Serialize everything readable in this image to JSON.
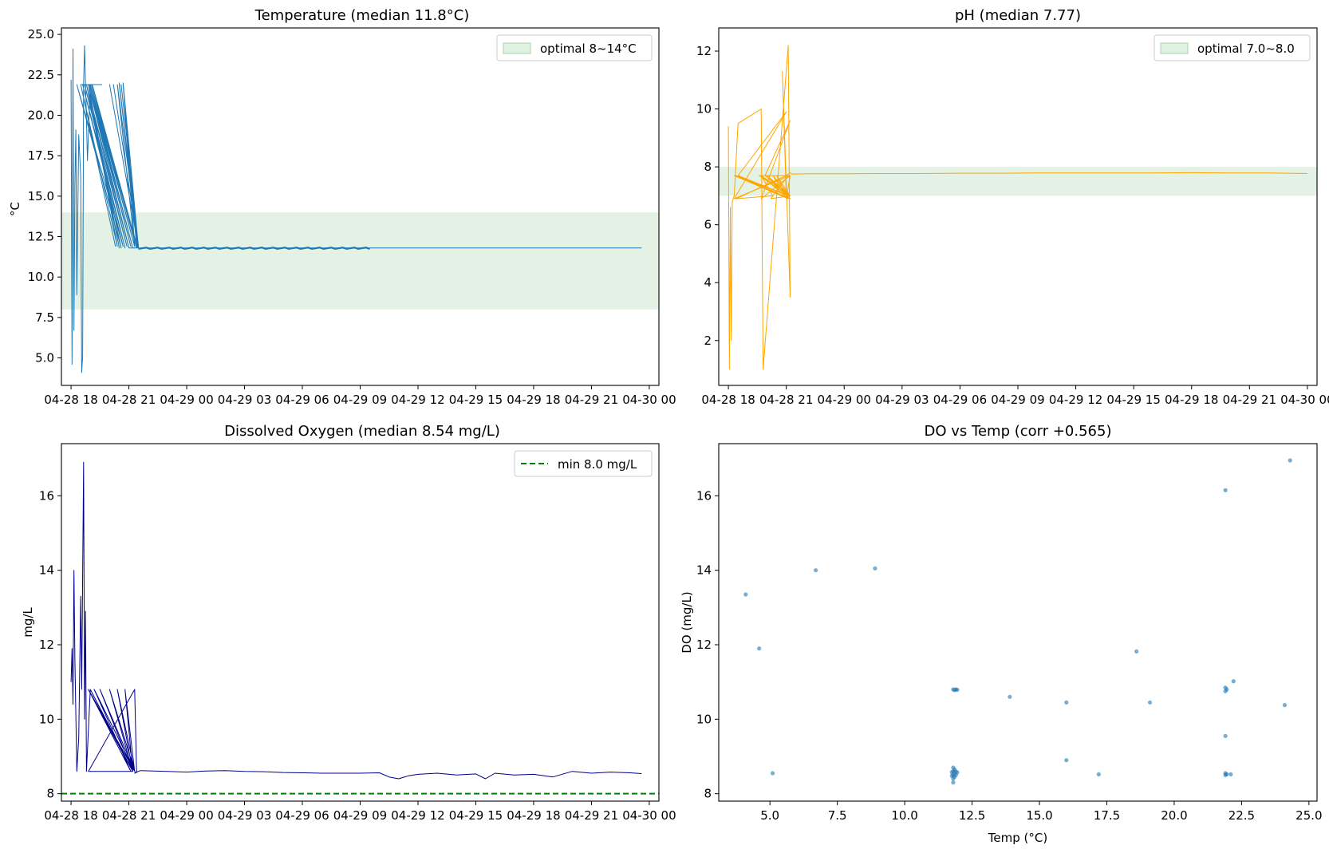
{
  "chart_data": [
    {
      "type": "line",
      "title": "Temperature (median 11.8°C)",
      "xlabel": "",
      "ylabel": "°C",
      "ylim": [
        3.3,
        25.4
      ],
      "yticks": [
        5.0,
        7.5,
        10.0,
        12.5,
        15.0,
        17.5,
        20.0,
        22.5,
        25.0
      ],
      "ytick_labels": [
        "5.0",
        "7.5",
        "10.0",
        "12.5",
        "15.0",
        "17.5",
        "20.0",
        "22.5",
        "25.0"
      ],
      "xlim": [
        -0.5,
        30.5
      ],
      "xticks": [
        0,
        3,
        6,
        9,
        12,
        15,
        18,
        21,
        24,
        27,
        30
      ],
      "xtick_labels": [
        "04-28 18",
        "04-28 21",
        "04-29 00",
        "04-29 03",
        "04-29 06",
        "04-29 09",
        "04-29 12",
        "04-29 15",
        "04-29 18",
        "04-29 21",
        "04-30 00"
      ],
      "band": {
        "y0": 8,
        "y1": 14,
        "color": "#c8e6c9"
      },
      "legend": {
        "label": "optimal 8~14°C",
        "loc": "upper right"
      },
      "series_color": "#1f77b4",
      "x": [
        0.0,
        0.05,
        0.1,
        0.15,
        0.2,
        0.25,
        0.3,
        0.4,
        0.5,
        0.55,
        0.6,
        0.65,
        0.7,
        0.75,
        0.8,
        0.85,
        1.0,
        1.6,
        0.5,
        2.3,
        0.5,
        2.4,
        0.9,
        2.5,
        0.8,
        2.6,
        0.3,
        2.7,
        0.6,
        2.8,
        0.7,
        2.9,
        0.8,
        3.0,
        0.9,
        3.1,
        0.95,
        3.2,
        1.0,
        3.3,
        1.05,
        3.4,
        1.1,
        3.45,
        2.5,
        3.5,
        2.0,
        3.5,
        2.2,
        3.5,
        2.5,
        3.5,
        2.6,
        3.5,
        2.4,
        3.3,
        2.7,
        3.5,
        2.7,
        3.4,
        3.5,
        3.0,
        4.0,
        5.0,
        6.0,
        7.0,
        8.0,
        9.0,
        10.0,
        11.0,
        12.0,
        13.0,
        14.0,
        15.0,
        16.0,
        17.0,
        18.0,
        19.0,
        20.0,
        21.0,
        22.0,
        23.0,
        24.0,
        25.0,
        26.0,
        27.0,
        28.0,
        29.0,
        29.6
      ],
      "y": [
        22.2,
        4.6,
        24.1,
        6.7,
        15.8,
        19.1,
        8.9,
        18.8,
        16.2,
        4.1,
        5.1,
        21.9,
        24.3,
        21.9,
        19.8,
        17.2,
        21.9,
        21.9,
        21.9,
        11.9,
        21.9,
        11.9,
        21.9,
        11.8,
        21.9,
        11.8,
        21.9,
        11.9,
        21.9,
        11.8,
        21.9,
        11.9,
        21.9,
        11.8,
        21.9,
        11.9,
        21.9,
        11.8,
        21.9,
        11.9,
        21.9,
        11.8,
        21.9,
        11.8,
        22.0,
        11.8,
        21.9,
        11.8,
        21.9,
        11.8,
        21.9,
        11.9,
        21.9,
        11.8,
        21.9,
        11.9,
        22.0,
        11.8,
        21.9,
        11.9,
        11.8,
        11.8,
        11.8,
        11.8,
        11.8,
        11.8,
        11.8,
        11.8,
        11.8,
        11.8,
        11.8,
        11.8,
        11.8,
        11.8,
        11.8,
        11.8,
        11.8,
        11.8,
        11.8,
        11.8,
        11.8,
        11.8,
        11.8,
        11.8,
        11.8,
        11.8,
        11.8,
        11.8,
        11.8
      ]
    },
    {
      "type": "line",
      "title": "pH (median 7.77)",
      "xlabel": "",
      "ylabel": "",
      "ylim": [
        0.45,
        12.8
      ],
      "yticks": [
        2,
        4,
        6,
        8,
        10,
        12
      ],
      "ytick_labels": [
        "2",
        "4",
        "6",
        "8",
        "10",
        "12"
      ],
      "xlim": [
        -0.5,
        30.5
      ],
      "xticks": [
        0,
        3,
        6,
        9,
        12,
        15,
        18,
        21,
        24,
        27,
        30
      ],
      "xtick_labels": [
        "04-28 18",
        "04-28 21",
        "04-29 00",
        "04-29 03",
        "04-29 06",
        "04-29 09",
        "04-29 12",
        "04-29 15",
        "04-29 18",
        "04-29 21",
        "04-30 00"
      ],
      "band": {
        "y0": 7.0,
        "y1": 8.0,
        "color": "#c8e6c9"
      },
      "legend": {
        "label": "optimal 7.0~8.0",
        "loc": "upper right"
      },
      "series_color": "#ffa500",
      "x": [
        0.0,
        0.05,
        0.1,
        0.15,
        0.2,
        0.3,
        0.5,
        1.7,
        1.8,
        3.1,
        3.2,
        2.8,
        3.0,
        3.2,
        1.6,
        3.1,
        0.5,
        3.0,
        0.3,
        3.2,
        1.7,
        3.2,
        1.9,
        3.1,
        0.4,
        3.2,
        2.0,
        3.2,
        2.3,
        3.1,
        2.5,
        3.2,
        0.3,
        3.1,
        1.7,
        3.2,
        2.2,
        3.1,
        1.7,
        2.3,
        0.4,
        3.0,
        3.2,
        3.3,
        4.0,
        6.0,
        8.0,
        10.0,
        12.0,
        14.0,
        16.0,
        18.0,
        20.0,
        22.0,
        24.0,
        26.0,
        28.0,
        29.0,
        30.0
      ],
      "y": [
        9.4,
        1.0,
        6.6,
        2.0,
        6.8,
        7.0,
        9.5,
        10.0,
        1.0,
        12.2,
        3.5,
        11.3,
        6.9,
        7.7,
        7.7,
        7.0,
        7.7,
        9.9,
        6.9,
        7.7,
        6.9,
        9.6,
        7.7,
        7.0,
        7.7,
        6.9,
        7.7,
        7.0,
        7.7,
        6.9,
        7.7,
        7.0,
        7.7,
        6.9,
        7.7,
        7.0,
        6.9,
        7.7,
        7.7,
        7.0,
        6.9,
        7.7,
        7.8,
        7.75,
        7.76,
        7.76,
        7.77,
        7.77,
        7.78,
        7.78,
        7.79,
        7.79,
        7.79,
        7.79,
        7.8,
        7.79,
        7.79,
        7.78,
        7.77
      ]
    },
    {
      "type": "line",
      "title": "Dissolved Oxygen (median 8.54 mg/L)",
      "xlabel": "",
      "ylabel": "mg/L",
      "ylim": [
        7.8,
        17.4
      ],
      "yticks": [
        8,
        10,
        12,
        14,
        16
      ],
      "ytick_labels": [
        "8",
        "10",
        "12",
        "14",
        "16"
      ],
      "xlim": [
        -0.5,
        30.5
      ],
      "xticks": [
        0,
        3,
        6,
        9,
        12,
        15,
        18,
        21,
        24,
        27,
        30
      ],
      "xtick_labels": [
        "04-28 18",
        "04-28 21",
        "04-29 00",
        "04-29 03",
        "04-29 06",
        "04-29 09",
        "04-29 12",
        "04-29 15",
        "04-29 18",
        "04-29 21",
        "04-30 00"
      ],
      "hline": {
        "y": 8.0,
        "color": "#008000"
      },
      "legend": {
        "label": "min 8.0 mg/L",
        "loc": "upper right"
      },
      "series_color": "#00008b",
      "x": [
        0.0,
        0.05,
        0.1,
        0.15,
        0.2,
        0.3,
        0.4,
        0.5,
        0.55,
        0.65,
        0.7,
        0.75,
        0.8,
        1.0,
        3.2,
        0.9,
        3.1,
        1.2,
        3.3,
        1.5,
        3.2,
        2.0,
        3.3,
        0.9,
        3.2,
        2.4,
        3.3,
        2.8,
        3.2,
        0.9,
        3.3,
        3.4,
        3.3,
        3.5,
        3.6,
        5.0,
        6.0,
        7.0,
        8.0,
        9.0,
        10.0,
        11.0,
        12.0,
        13.0,
        14.0,
        15.0,
        16.0,
        16.5,
        17.0,
        17.5,
        18.0,
        19.0,
        20.0,
        21.0,
        21.5,
        22.0,
        23.0,
        24.0,
        25.0,
        26.0,
        27.0,
        28.0,
        29.0,
        29.6
      ],
      "y": [
        11.0,
        11.9,
        10.4,
        14.0,
        11.6,
        8.6,
        9.5,
        13.3,
        10.8,
        16.9,
        10.0,
        12.9,
        8.6,
        10.8,
        8.6,
        10.8,
        8.6,
        10.8,
        8.6,
        10.8,
        8.6,
        10.8,
        8.6,
        10.8,
        8.6,
        10.8,
        8.6,
        10.8,
        8.6,
        8.6,
        10.8,
        8.6,
        8.55,
        8.6,
        8.62,
        8.6,
        8.58,
        8.61,
        8.62,
        8.6,
        8.59,
        8.57,
        8.56,
        8.55,
        8.55,
        8.55,
        8.56,
        8.45,
        8.4,
        8.48,
        8.52,
        8.55,
        8.5,
        8.53,
        8.4,
        8.55,
        8.5,
        8.52,
        8.45,
        8.6,
        8.55,
        8.58,
        8.56,
        8.54
      ],
      "series_band_note": ""
    },
    {
      "type": "scatter",
      "title": "DO vs Temp (corr +0.565)",
      "xlabel": "Temp (°C)",
      "ylabel": "DO (mg/L)",
      "xlim": [
        3.1,
        25.3
      ],
      "ylim": [
        7.8,
        17.4
      ],
      "xticks": [
        5.0,
        7.5,
        10.0,
        12.5,
        15.0,
        17.5,
        20.0,
        22.5,
        25.0
      ],
      "xtick_labels": [
        "5.0",
        "7.5",
        "10.0",
        "12.5",
        "15.0",
        "17.5",
        "20.0",
        "22.5",
        "25.0"
      ],
      "yticks": [
        8,
        10,
        12,
        14,
        16
      ],
      "ytick_labels": [
        "8",
        "10",
        "12",
        "14",
        "16"
      ],
      "series_color": "#1f77b4",
      "points": [
        [
          4.1,
          13.35
        ],
        [
          4.6,
          11.9
        ],
        [
          5.1,
          8.55
        ],
        [
          6.7,
          14.0
        ],
        [
          8.9,
          14.05
        ],
        [
          11.8,
          10.8
        ],
        [
          11.85,
          10.78
        ],
        [
          11.9,
          10.8
        ],
        [
          11.95,
          10.79
        ],
        [
          11.8,
          8.7
        ],
        [
          11.8,
          8.6
        ],
        [
          11.8,
          8.5
        ],
        [
          11.8,
          8.4
        ],
        [
          11.8,
          8.3
        ],
        [
          11.85,
          8.65
        ],
        [
          11.85,
          8.55
        ],
        [
          11.85,
          8.45
        ],
        [
          11.9,
          8.6
        ],
        [
          11.9,
          8.5
        ],
        [
          11.75,
          8.58
        ],
        [
          11.75,
          8.48
        ],
        [
          11.95,
          8.57
        ],
        [
          13.9,
          10.6
        ],
        [
          16.0,
          10.45
        ],
        [
          16.0,
          8.9
        ],
        [
          17.2,
          8.52
        ],
        [
          18.6,
          11.82
        ],
        [
          19.1,
          10.45
        ],
        [
          21.9,
          16.15
        ],
        [
          21.9,
          10.85
        ],
        [
          21.9,
          10.75
        ],
        [
          21.95,
          10.8
        ],
        [
          21.9,
          9.55
        ],
        [
          21.9,
          8.55
        ],
        [
          21.9,
          8.5
        ],
        [
          21.95,
          8.52
        ],
        [
          22.1,
          8.52
        ],
        [
          22.2,
          11.02
        ],
        [
          24.1,
          10.38
        ],
        [
          24.3,
          16.95
        ]
      ]
    }
  ]
}
